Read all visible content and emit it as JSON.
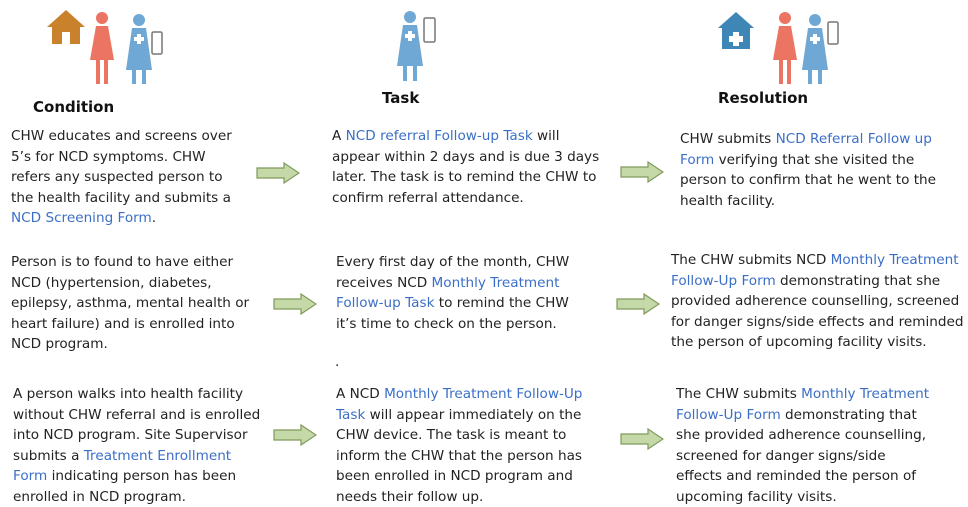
{
  "headings": {
    "condition": "Condition",
    "task": "Task",
    "resolution": "Resolution"
  },
  "icons": {
    "condition": [
      "house-icon",
      "woman-icon",
      "nurse-with-phone-icon"
    ],
    "task": [
      "nurse-with-phone-icon"
    ],
    "resolution": [
      "health-facility-icon",
      "woman-icon",
      "nurse-with-phone-icon"
    ]
  },
  "colors": {
    "link": "#3b6fc7",
    "arrow_fill": "#c5d9a8",
    "arrow_stroke": "#7f9a5c",
    "house": "#c9822b",
    "facility": "#3d86b6",
    "woman": "#ec7463",
    "nurse": "#6fa8d4"
  },
  "rows": [
    {
      "condition": [
        [
          "CHW educates and screens over"
        ],
        [
          "5’s  for NCD symptoms. CHW"
        ],
        [
          "refers any suspected person to"
        ],
        [
          "the health facility and submits a"
        ],
        [
          {
            "link": "NCD Screening Form"
          },
          "."
        ]
      ],
      "task": [
        [
          "A ",
          {
            "link": "NCD referral Follow-up Task"
          },
          " will"
        ],
        [
          "appear within 2 days and is due 3 days"
        ],
        [
          "later. The task is to remind the CHW to"
        ],
        [
          "confirm referral attendance."
        ]
      ],
      "resolution": [
        [
          "CHW submits ",
          {
            "link": "NCD Referral Follow up"
          }
        ],
        [
          {
            "link": "Form"
          },
          " verifying that she visited the"
        ],
        [
          "person to confirm that he went to the"
        ],
        [
          "health facility."
        ]
      ]
    },
    {
      "condition": [
        [
          "Person is to found to have either"
        ],
        [
          "NCD (hypertension, diabetes,"
        ],
        [
          "epilepsy, asthma, mental health or"
        ],
        [
          "heart failure) and is enrolled into"
        ],
        [
          "NCD program."
        ]
      ],
      "task": [
        [
          "Every first day of the month, CHW"
        ],
        [
          "receives NCD ",
          {
            "link": "Monthly Treatment"
          }
        ],
        [
          {
            "link": "Follow-up Task"
          },
          " to remind the CHW"
        ],
        [
          "it’s time to check on the person."
        ]
      ],
      "resolution": [
        [
          "The CHW submits NCD ",
          {
            "link": "Monthly Treatment"
          }
        ],
        [
          {
            "link": "Follow-Up Form"
          },
          " demonstrating that she"
        ],
        [
          "provided adherence counselling, screened"
        ],
        [
          "for danger signs/side effects and reminded"
        ],
        [
          "the person of upcoming facility visits."
        ]
      ]
    },
    {
      "condition": [
        [
          "A person walks into health facility"
        ],
        [
          "without CHW referral and is enrolled"
        ],
        [
          "into NCD program. Site Supervisor"
        ],
        [
          "submits a ",
          {
            "link": "Treatment Enrollment"
          }
        ],
        [
          {
            "link": "Form"
          },
          " indicating person has been"
        ],
        [
          "enrolled in NCD program."
        ]
      ],
      "task": [
        [
          "A NCD ",
          {
            "link": "Monthly Treatment  Follow-Up"
          }
        ],
        [
          {
            "link": "Task"
          },
          " will appear immediately on the"
        ],
        [
          "CHW device. The task is meant to"
        ],
        [
          "inform the CHW that the person has"
        ],
        [
          "been enrolled in NCD program and"
        ],
        [
          "needs their follow up."
        ]
      ],
      "resolution": [
        [
          "The CHW submits ",
          {
            "link": "Monthly Treatment"
          }
        ],
        [
          {
            "link": "Follow-Up Form"
          },
          " demonstrating that"
        ],
        [
          "she provided adherence counselling,"
        ],
        [
          "screened for danger signs/side"
        ],
        [
          "effects and reminded the person of"
        ],
        [
          "upcoming facility visits."
        ]
      ]
    }
  ],
  "stray_mark": "."
}
